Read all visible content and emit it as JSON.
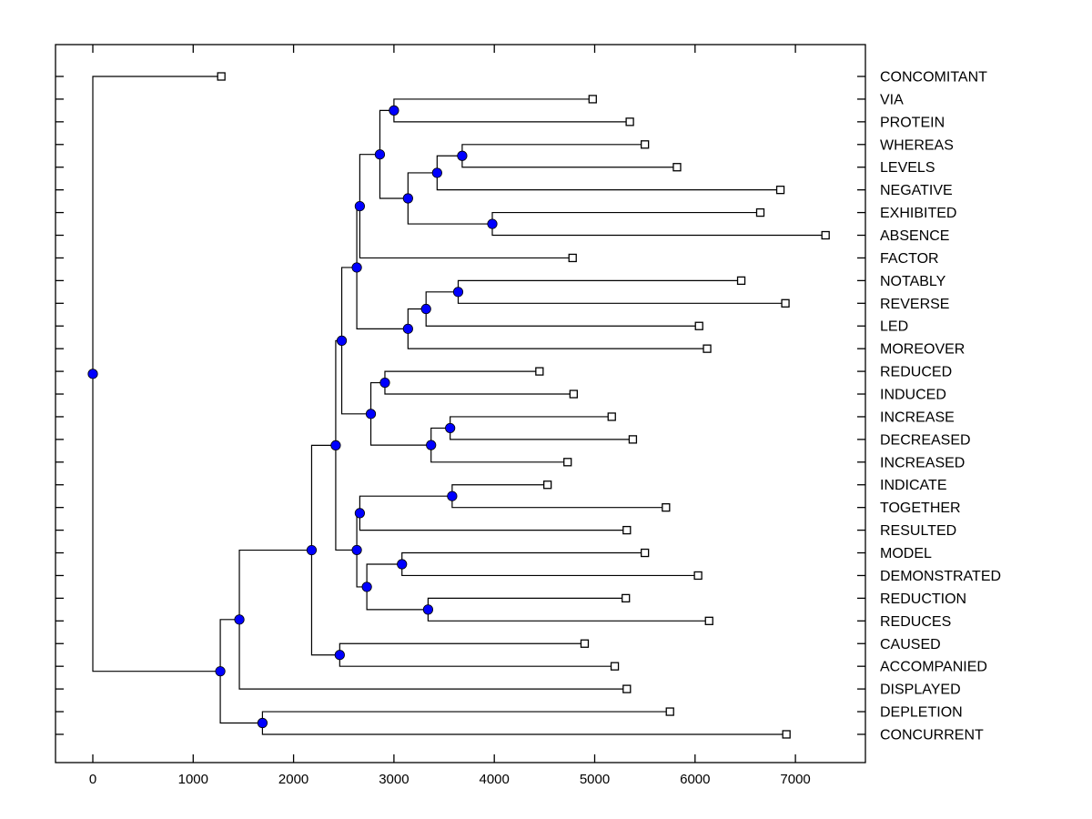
{
  "chart_data": {
    "type": "dendrogram",
    "title": "",
    "xlabel": "",
    "ylabel": "",
    "xlim": [
      -370,
      7700
    ],
    "x_ticks": [
      0,
      1000,
      2000,
      3000,
      4000,
      5000,
      6000,
      7000
    ],
    "x_tick_labels": [
      "0",
      "1000",
      "2000",
      "3000",
      "4000",
      "5000",
      "6000",
      "7000"
    ],
    "grid": false,
    "legend": "none",
    "leaf_labels_position": "right",
    "colors": {
      "node": "#0000ff",
      "leaf": "#ffffff",
      "line": "#000000"
    },
    "leaves": [
      {
        "label": "CONCOMITANT",
        "value": 1280
      },
      {
        "label": "VIA",
        "value": 4980
      },
      {
        "label": "PROTEIN",
        "value": 5350
      },
      {
        "label": "WHEREAS",
        "value": 5500
      },
      {
        "label": "LEVELS",
        "value": 5820
      },
      {
        "label": "NEGATIVE",
        "value": 6850
      },
      {
        "label": "EXHIBITED",
        "value": 6650
      },
      {
        "label": "ABSENCE",
        "value": 7300
      },
      {
        "label": "FACTOR",
        "value": 4780
      },
      {
        "label": "NOTABLY",
        "value": 6460
      },
      {
        "label": "REVERSE",
        "value": 6900
      },
      {
        "label": "LED",
        "value": 6040
      },
      {
        "label": "MOREOVER",
        "value": 6120
      },
      {
        "label": "REDUCED",
        "value": 4450
      },
      {
        "label": "INDUCED",
        "value": 4790
      },
      {
        "label": "INCREASE",
        "value": 5170
      },
      {
        "label": "DECREASED",
        "value": 5380
      },
      {
        "label": "INCREASED",
        "value": 4730
      },
      {
        "label": "INDICATE",
        "value": 4530
      },
      {
        "label": "TOGETHER",
        "value": 5710
      },
      {
        "label": "RESULTED",
        "value": 5320
      },
      {
        "label": "MODEL",
        "value": 5500
      },
      {
        "label": "DEMONSTRATED",
        "value": 6030
      },
      {
        "label": "REDUCTION",
        "value": 5310
      },
      {
        "label": "REDUCES",
        "value": 6140
      },
      {
        "label": "CAUSED",
        "value": 4900
      },
      {
        "label": "ACCOMPANIED",
        "value": 5200
      },
      {
        "label": "DISPLAYED",
        "value": 5320
      },
      {
        "label": "DEPLETION",
        "value": 5750
      },
      {
        "label": "CONCURRENT",
        "value": 6910
      }
    ],
    "tree": {
      "value": 0,
      "children": [
        {
          "leaf": 0
        },
        {
          "value": 1270,
          "children": [
            {
              "value": 1460,
              "children": [
                {
                  "value": 2180,
                  "children": [
                    {
                      "value": 2420,
                      "children": [
                        {
                          "value": 2480,
                          "children": [
                            {
                              "value": 2630,
                              "children": [
                                {
                                  "value": 2660,
                                  "children": [
                                    {
                                      "value": 2860,
                                      "children": [
                                        {
                                          "value": 3000,
                                          "children": [
                                            {
                                              "leaf": 1
                                            },
                                            {
                                              "leaf": 2
                                            }
                                          ]
                                        },
                                        {
                                          "value": 3140,
                                          "children": [
                                            {
                                              "value": 3430,
                                              "children": [
                                                {
                                                  "value": 3680,
                                                  "children": [
                                                    {
                                                      "leaf": 3
                                                    },
                                                    {
                                                      "leaf": 4
                                                    }
                                                  ]
                                                },
                                                {
                                                  "leaf": 5
                                                }
                                              ]
                                            },
                                            {
                                              "value": 3980,
                                              "children": [
                                                {
                                                  "leaf": 6
                                                },
                                                {
                                                  "leaf": 7
                                                }
                                              ]
                                            }
                                          ]
                                        }
                                      ]
                                    },
                                    {
                                      "leaf": 8
                                    }
                                  ]
                                },
                                {
                                  "value": 3140,
                                  "children": [
                                    {
                                      "value": 3320,
                                      "children": [
                                        {
                                          "value": 3640,
                                          "children": [
                                            {
                                              "leaf": 9
                                            },
                                            {
                                              "leaf": 10
                                            }
                                          ]
                                        },
                                        {
                                          "leaf": 11
                                        }
                                      ]
                                    },
                                    {
                                      "leaf": 12
                                    }
                                  ]
                                }
                              ]
                            },
                            {
                              "value": 2770,
                              "children": [
                                {
                                  "value": 2910,
                                  "children": [
                                    {
                                      "leaf": 13
                                    },
                                    {
                                      "leaf": 14
                                    }
                                  ]
                                },
                                {
                                  "value": 3370,
                                  "children": [
                                    {
                                      "value": 3560,
                                      "children": [
                                        {
                                          "leaf": 15
                                        },
                                        {
                                          "leaf": 16
                                        }
                                      ]
                                    },
                                    {
                                      "leaf": 17
                                    }
                                  ]
                                }
                              ]
                            }
                          ]
                        },
                        {
                          "value": 2630,
                          "children": [
                            {
                              "value": 2660,
                              "children": [
                                {
                                  "value": 3580,
                                  "children": [
                                    {
                                      "leaf": 18
                                    },
                                    {
                                      "leaf": 19
                                    }
                                  ]
                                },
                                {
                                  "leaf": 20
                                }
                              ]
                            },
                            {
                              "value": 2730,
                              "children": [
                                {
                                  "value": 3080,
                                  "children": [
                                    {
                                      "leaf": 21
                                    },
                                    {
                                      "leaf": 22
                                    }
                                  ]
                                },
                                {
                                  "value": 3340,
                                  "children": [
                                    {
                                      "leaf": 23
                                    },
                                    {
                                      "leaf": 24
                                    }
                                  ]
                                }
                              ]
                            }
                          ]
                        }
                      ]
                    },
                    {
                      "value": 2460,
                      "children": [
                        {
                          "leaf": 25
                        },
                        {
                          "leaf": 26
                        }
                      ]
                    }
                  ]
                },
                {
                  "leaf": 27
                }
              ]
            },
            {
              "value": 1690,
              "children": [
                {
                  "leaf": 28
                },
                {
                  "leaf": 29
                }
              ]
            }
          ]
        }
      ]
    }
  }
}
